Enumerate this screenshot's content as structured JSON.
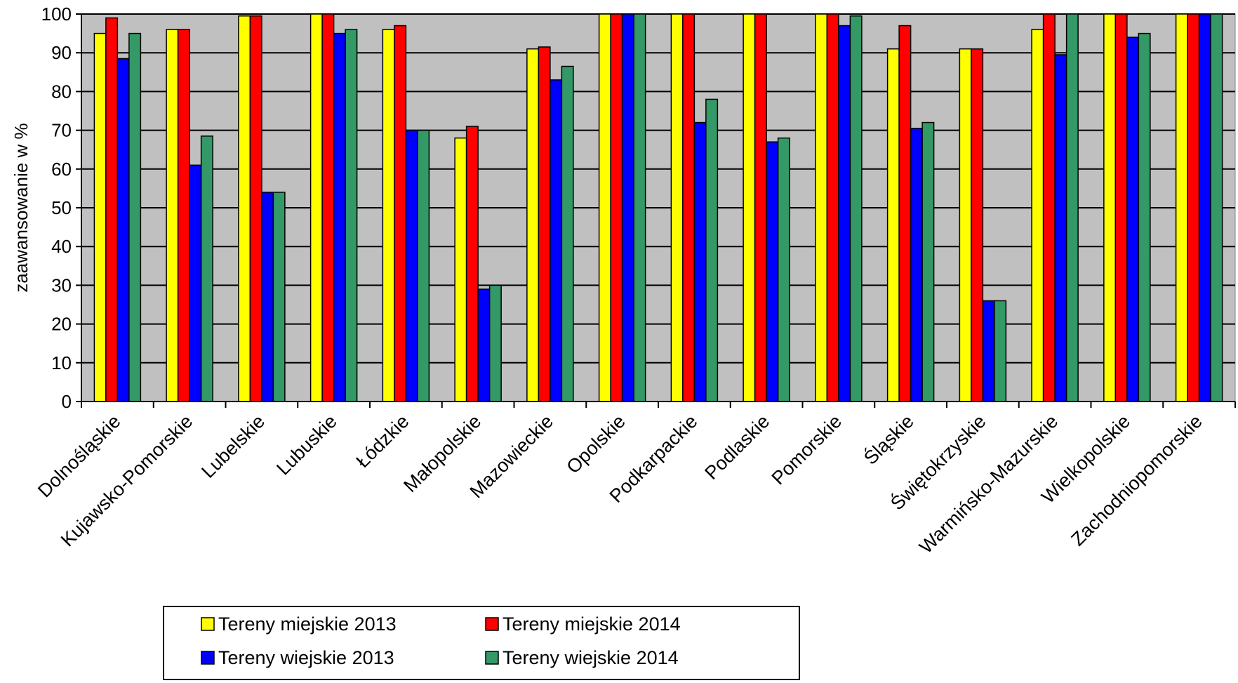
{
  "chart_data": {
    "type": "bar",
    "title": "",
    "xlabel": "",
    "ylabel": "zaawansowanie w %",
    "ylim": [
      0,
      100
    ],
    "yticks": [
      0,
      10,
      20,
      30,
      40,
      50,
      60,
      70,
      80,
      90,
      100
    ],
    "grid": true,
    "legend_position": "bottom-left",
    "categories": [
      "Dolnośląskie",
      "Kujawsko-Pomorskie",
      "Lubelskie",
      "Lubuskie",
      "Łódzkie",
      "Małopolskie",
      "Mazowieckie",
      "Opolskie",
      "Podkarpackie",
      "Podlaskie",
      "Pomorskie",
      "Śląskie",
      "Świętokrzyskie",
      "Warmińsko-Mazurskie",
      "Wielkopolskie",
      "Zachodniopomorskie"
    ],
    "series": [
      {
        "name": "Tereny miejskie 2013",
        "color": "#ffff00",
        "values": [
          95,
          96,
          99.5,
          100,
          96,
          68,
          91,
          100,
          100,
          100,
          100,
          91,
          91,
          96,
          100,
          100
        ]
      },
      {
        "name": "Tereny miejskie 2014",
        "color": "#ff0000",
        "values": [
          99,
          96,
          99.5,
          100,
          97,
          71,
          91.5,
          100,
          100,
          100,
          100,
          97,
          91,
          100,
          100,
          100
        ]
      },
      {
        "name": "Tereny wiejskie 2013",
        "color": "#0000ff",
        "values": [
          88.5,
          61,
          54,
          95,
          70,
          29,
          83,
          100,
          72,
          67,
          97,
          70.5,
          26,
          89.5,
          94,
          100
        ]
      },
      {
        "name": "Tereny wiejskie 2014",
        "color": "#339966",
        "values": [
          95,
          68.5,
          54,
          96,
          70,
          30,
          86.5,
          100,
          78,
          68,
          99.5,
          72,
          26,
          100,
          95,
          100
        ]
      }
    ],
    "plot_background": "#c0c0c0"
  }
}
